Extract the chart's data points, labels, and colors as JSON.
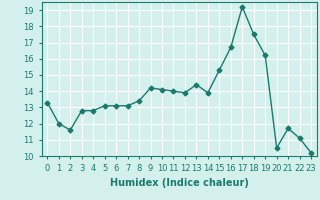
{
  "x": [
    0,
    1,
    2,
    3,
    4,
    5,
    6,
    7,
    8,
    9,
    10,
    11,
    12,
    13,
    14,
    15,
    16,
    17,
    18,
    19,
    20,
    21,
    22,
    23
  ],
  "y": [
    13.3,
    12.0,
    11.6,
    12.8,
    12.8,
    13.1,
    13.1,
    13.1,
    13.4,
    14.2,
    14.1,
    14.0,
    13.9,
    14.4,
    13.9,
    15.3,
    16.7,
    19.2,
    17.5,
    16.2,
    10.5,
    11.7,
    11.1,
    10.2
  ],
  "line_color": "#1a7a6e",
  "marker": "D",
  "markersize": 2.5,
  "linewidth": 1.0,
  "xlabel": "Humidex (Indice chaleur)",
  "xlabel_fontsize": 7,
  "background_color": "#d4f0ec",
  "grid_color": "#ffffff",
  "ylim": [
    10,
    19.5
  ],
  "xlim": [
    -0.5,
    23.5
  ],
  "yticks": [
    10,
    11,
    12,
    13,
    14,
    15,
    16,
    17,
    18,
    19
  ],
  "xticks": [
    0,
    1,
    2,
    3,
    4,
    5,
    6,
    7,
    8,
    9,
    10,
    11,
    12,
    13,
    14,
    15,
    16,
    17,
    18,
    19,
    20,
    21,
    22,
    23
  ],
  "tick_fontsize": 6,
  "tick_color": "#1a7a6e"
}
